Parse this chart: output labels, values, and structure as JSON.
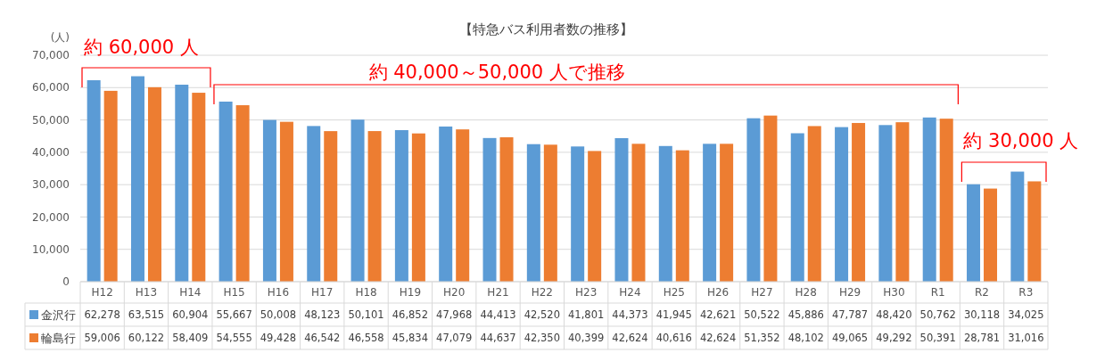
{
  "chart_data": {
    "type": "bar",
    "title": "【特急バス利用者数の推移】",
    "ylabel": "(人)",
    "categories": [
      "H12",
      "H13",
      "H14",
      "H15",
      "H16",
      "H17",
      "H18",
      "H19",
      "H20",
      "H21",
      "H22",
      "H23",
      "H24",
      "H25",
      "H26",
      "H27",
      "H28",
      "H29",
      "H30",
      "R1",
      "R2",
      "R3"
    ],
    "series": [
      {
        "name": "金沢行",
        "color": "#5b9bd5",
        "values": [
          62278,
          63515,
          60904,
          55667,
          50008,
          48123,
          50101,
          46852,
          47968,
          44413,
          42520,
          41801,
          44373,
          41945,
          42621,
          50522,
          45886,
          47787,
          48420,
          50762,
          30118,
          34025
        ],
        "value_labels": [
          "62,278",
          "63,515",
          "60,904",
          "55,667",
          "50,008",
          "48,123",
          "50,101",
          "46,852",
          "47,968",
          "44,413",
          "42,520",
          "41,801",
          "44,373",
          "41,945",
          "42,621",
          "50,522",
          "45,886",
          "47,787",
          "48,420",
          "50,762",
          "30,118",
          "34,025"
        ]
      },
      {
        "name": "輪島行",
        "color": "#ed7d31",
        "values": [
          59006,
          60122,
          58409,
          54555,
          49428,
          46542,
          46558,
          45834,
          47079,
          44637,
          42350,
          40399,
          42624,
          40616,
          42624,
          51352,
          48102,
          49065,
          49292,
          50391,
          28781,
          31016
        ],
        "value_labels": [
          "59,006",
          "60,122",
          "58,409",
          "54,555",
          "49,428",
          "46,542",
          "46,558",
          "45,834",
          "47,079",
          "44,637",
          "42,350",
          "40,399",
          "42,624",
          "40,616",
          "42,624",
          "51,352",
          "48,102",
          "49,065",
          "49,292",
          "50,391",
          "28,781",
          "31,016"
        ]
      }
    ],
    "ylim": [
      0,
      70000
    ],
    "yticks": [
      {
        "value": 0,
        "label": "0"
      },
      {
        "value": 10000,
        "label": "10,000"
      },
      {
        "value": 20000,
        "label": "20,000"
      },
      {
        "value": 30000,
        "label": "30,000"
      },
      {
        "value": 40000,
        "label": "40,000"
      },
      {
        "value": 50000,
        "label": "50,000"
      },
      {
        "value": 60000,
        "label": "60,000"
      },
      {
        "value": 70000,
        "label": "70,000"
      }
    ],
    "grid": "y",
    "legend": "bottom",
    "annotations": [
      "約 60,000 人",
      "約 40,000～50,000 人で推移",
      "約 30,000 人"
    ]
  }
}
